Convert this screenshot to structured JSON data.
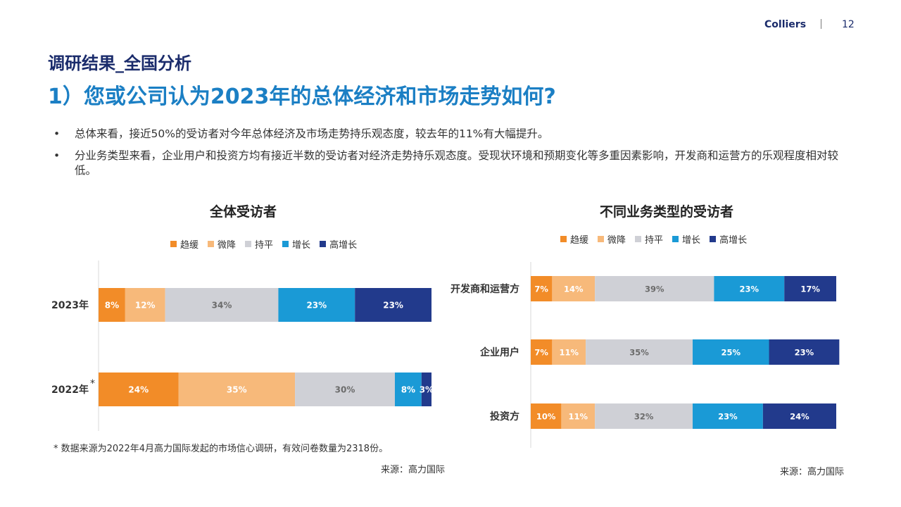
{
  "header": {
    "brand": "Colliers",
    "page_number": "12"
  },
  "section_title": "调研结果_全国分析",
  "question": "1）您或公司认为2023年的总体经济和市场走势如何?",
  "bullets": [
    "总体来看，接近50%的受访者对今年总体经济及市场走势持乐观态度，较去年的11%有大幅提升。",
    "分业务类型来看，企业用户和投资方均有接近半数的受访者对经济走势持乐观态度。受现状环境和预期变化等多重因素影响，开发商和运营方的乐观程度相对较低。"
  ],
  "legend_labels": [
    "趋缓",
    "微降",
    "持平",
    "增长",
    "高增长"
  ],
  "colors": {
    "slowdown": "#f28c28",
    "slight_decline": "#f7b97a",
    "flat": "#cfd0d6",
    "growth": "#1a9ad6",
    "high_growth": "#223a8c",
    "title_blue": "#1b7fc4",
    "brand_navy": "#1a2b6b"
  },
  "chart_data": [
    {
      "type": "bar",
      "orientation": "horizontal",
      "stacked": true,
      "title": "全体受访者",
      "categories": [
        "2023年",
        "2022年"
      ],
      "category_marks": [
        "",
        "*"
      ],
      "series": [
        {
          "name": "趋缓",
          "values": [
            8,
            24
          ],
          "labels": [
            "8%",
            "24%"
          ]
        },
        {
          "name": "微降",
          "values": [
            12,
            35
          ],
          "labels": [
            "12%",
            "35%"
          ]
        },
        {
          "name": "持平",
          "values": [
            34,
            30
          ],
          "labels": [
            "34%",
            "30%"
          ]
        },
        {
          "name": "增长",
          "values": [
            23,
            8
          ],
          "labels": [
            "23%",
            "8%"
          ]
        },
        {
          "name": "高增长",
          "values": [
            23,
            3
          ],
          "labels": [
            "23%",
            "3%"
          ]
        }
      ],
      "xlim": [
        0,
        100
      ],
      "legend_position": "top",
      "footnote": "* 数据来源为2022年4月高力国际发起的市场信心调研，有效问卷数量为2318份。",
      "source": "来源：高力国际"
    },
    {
      "type": "bar",
      "orientation": "horizontal",
      "stacked": true,
      "title": "不同业务类型的受访者",
      "categories": [
        "开发商和运营方",
        "企业用户",
        "投资方"
      ],
      "series": [
        {
          "name": "趋缓",
          "values": [
            7,
            7,
            10
          ],
          "labels": [
            "7%",
            "7%",
            "10%"
          ]
        },
        {
          "name": "微降",
          "values": [
            14,
            11,
            11
          ],
          "labels": [
            "14%",
            "11%",
            "11%"
          ]
        },
        {
          "name": "持平",
          "values": [
            39,
            35,
            32
          ],
          "labels": [
            "39%",
            "35%",
            "32%"
          ]
        },
        {
          "name": "增长",
          "values": [
            23,
            25,
            23
          ],
          "labels": [
            "23%",
            "25%",
            "23%"
          ]
        },
        {
          "name": "高增长",
          "values": [
            17,
            23,
            24
          ],
          "labels": [
            "17%",
            "23%",
            "24%"
          ]
        }
      ],
      "xlim": [
        0,
        100
      ],
      "legend_position": "top",
      "source": "来源：高力国际"
    }
  ]
}
